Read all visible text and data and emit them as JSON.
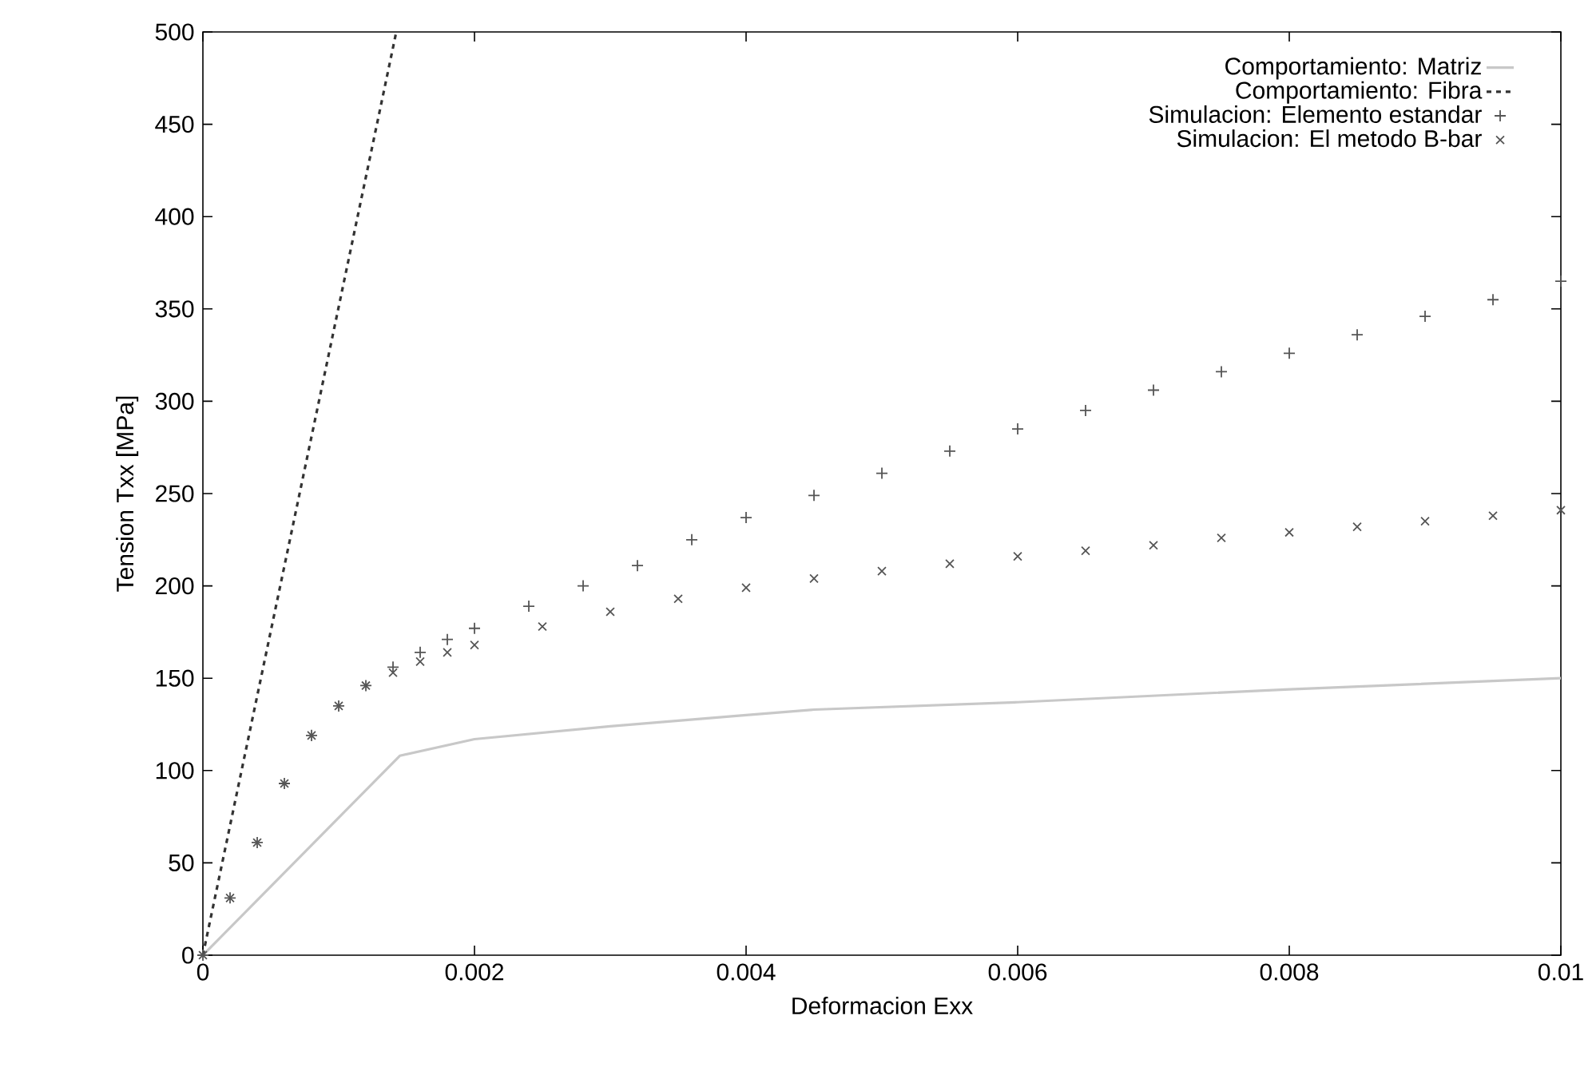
{
  "chart_data": {
    "type": "line",
    "xlabel": "Deformacion Exx",
    "ylabel": "Tension Txx [MPa]",
    "xlim": [
      0,
      0.01
    ],
    "ylim": [
      0,
      500
    ],
    "xticks": [
      0,
      0.002,
      0.004,
      0.006,
      0.008,
      0.01
    ],
    "yticks": [
      0,
      50,
      100,
      150,
      200,
      250,
      300,
      350,
      400,
      450,
      500
    ],
    "grid": false,
    "legend": "top right",
    "series": [
      {
        "name": "Comportamiento: Matriz",
        "color": "#c8c8c8",
        "line_style": "solid",
        "marker": "none",
        "x": [
          0,
          0.00145,
          0.002,
          0.003,
          0.004,
          0.0045,
          0.006,
          0.008,
          0.01
        ],
        "values": [
          0,
          108,
          117,
          124,
          130,
          133,
          137,
          144,
          150
        ]
      },
      {
        "name": "Comportamiento: Fibra",
        "color": "#333333",
        "line_style": "dashed",
        "marker": "none",
        "x": [
          0,
          0.001424
        ],
        "values": [
          0,
          500
        ]
      },
      {
        "name": "Simulacion: Elemento estandar",
        "type": "scatter",
        "color": "#555555",
        "marker": "plus",
        "x": [
          0,
          0.0002,
          0.0004,
          0.0006,
          0.0008,
          0.001,
          0.0012,
          0.0014,
          0.0016,
          0.0018,
          0.002,
          0.0024,
          0.0028,
          0.0032,
          0.0036,
          0.004,
          0.0045,
          0.005,
          0.0055,
          0.006,
          0.0065,
          0.007,
          0.0075,
          0.008,
          0.0085,
          0.009,
          0.0095,
          0.01
        ],
        "values": [
          0,
          31,
          61,
          93,
          119,
          135,
          146,
          156,
          164,
          171,
          177,
          189,
          200,
          211,
          225,
          237,
          249,
          261,
          273,
          285,
          295,
          306,
          316,
          326,
          336,
          346,
          355,
          365
        ]
      },
      {
        "name": "Simulacion: El metodo B-bar",
        "type": "scatter",
        "color": "#555555",
        "marker": "cross",
        "x": [
          0,
          0.0002,
          0.0004,
          0.0006,
          0.0008,
          0.001,
          0.0012,
          0.0014,
          0.0016,
          0.0018,
          0.002,
          0.0025,
          0.003,
          0.0035,
          0.004,
          0.0045,
          0.005,
          0.0055,
          0.006,
          0.0065,
          0.007,
          0.0075,
          0.008,
          0.0085,
          0.009,
          0.0095,
          0.01
        ],
        "values": [
          0,
          31,
          61,
          93,
          119,
          135,
          146,
          153,
          159,
          164,
          168,
          178,
          186,
          193,
          199,
          204,
          208,
          212,
          216,
          219,
          222,
          226,
          229,
          232,
          235,
          238,
          241
        ]
      }
    ]
  }
}
